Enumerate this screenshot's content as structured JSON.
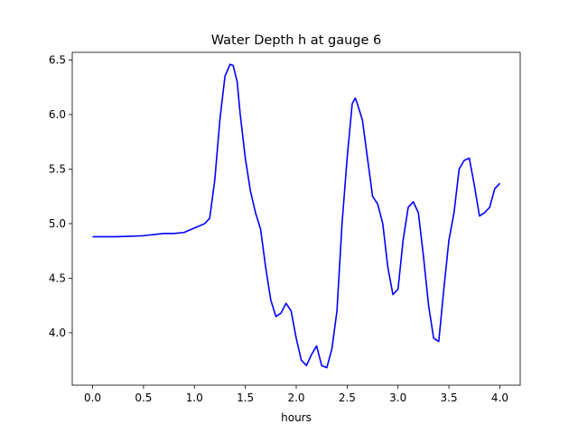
{
  "chart_data": {
    "type": "line",
    "title": "Water Depth h at gauge 6",
    "xlabel": "hours",
    "ylabel": "",
    "xlim": [
      -0.2,
      4.2
    ],
    "ylim": [
      3.52,
      6.57
    ],
    "xticks": [
      "0.0",
      "0.5",
      "1.0",
      "1.5",
      "2.0",
      "2.5",
      "3.0",
      "3.5",
      "4.0"
    ],
    "yticks": [
      "4.0",
      "4.5",
      "5.0",
      "5.5",
      "6.0",
      "6.5"
    ],
    "grid": false,
    "series": [
      {
        "color": "#0000ff",
        "x": [
          0.0,
          0.2,
          0.4,
          0.5,
          0.6,
          0.7,
          0.8,
          0.9,
          1.0,
          1.05,
          1.1,
          1.15,
          1.2,
          1.25,
          1.3,
          1.35,
          1.38,
          1.42,
          1.45,
          1.5,
          1.55,
          1.6,
          1.65,
          1.7,
          1.75,
          1.8,
          1.85,
          1.9,
          1.95,
          2.0,
          2.05,
          2.1,
          2.15,
          2.2,
          2.25,
          2.3,
          2.35,
          2.4,
          2.45,
          2.5,
          2.55,
          2.58,
          2.6,
          2.65,
          2.7,
          2.75,
          2.8,
          2.85,
          2.9,
          2.95,
          3.0,
          3.05,
          3.1,
          3.15,
          3.2,
          3.25,
          3.3,
          3.35,
          3.4,
          3.45,
          3.5,
          3.55,
          3.6,
          3.65,
          3.7,
          3.75,
          3.8,
          3.85,
          3.9,
          3.95,
          4.0
        ],
        "y": [
          4.88,
          4.88,
          4.885,
          4.89,
          4.9,
          4.91,
          4.91,
          4.92,
          4.96,
          4.98,
          5.0,
          5.05,
          5.4,
          5.95,
          6.35,
          6.46,
          6.45,
          6.3,
          6.0,
          5.6,
          5.3,
          5.1,
          4.95,
          4.6,
          4.3,
          4.15,
          4.18,
          4.27,
          4.2,
          3.95,
          3.75,
          3.7,
          3.8,
          3.88,
          3.7,
          3.68,
          3.85,
          4.2,
          5.0,
          5.6,
          6.1,
          6.15,
          6.1,
          5.95,
          5.6,
          5.25,
          5.18,
          5.0,
          4.6,
          4.35,
          4.4,
          4.85,
          5.15,
          5.2,
          5.1,
          4.7,
          4.25,
          3.95,
          3.92,
          4.4,
          4.85,
          5.1,
          5.5,
          5.58,
          5.6,
          5.35,
          5.07,
          5.1,
          5.15,
          5.32,
          5.37
        ]
      }
    ]
  }
}
